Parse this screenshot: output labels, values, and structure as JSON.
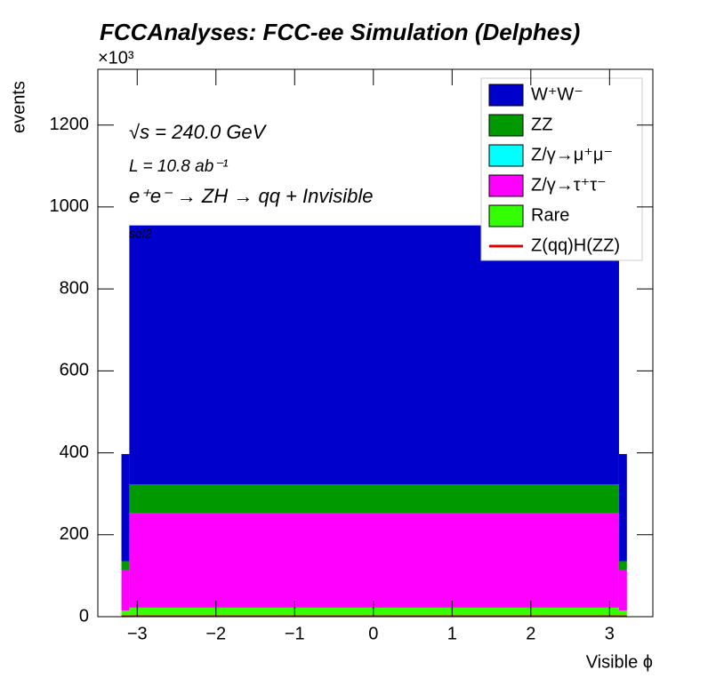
{
  "chart_data": {
    "type": "histogram",
    "stacked": true,
    "title": "FCCAnalyses: FCC-ee Simulation (Delphes)",
    "y_multiplier": "×10³",
    "ylabel": "events",
    "xlabel": "Visible ϕ",
    "annotations": [
      "√s = 240.0 GeV",
      "L = 10.8 ab⁻¹",
      "e⁺e⁻ → ZH → qq + Invisible",
      "sel2"
    ],
    "bins": [
      -3.2,
      -3.1,
      3.12,
      3.22
    ],
    "series": [
      {
        "name": "W⁺W⁻",
        "color": "#0000cc",
        "values": [
          262,
          632,
          262
        ]
      },
      {
        "name": "ZZ",
        "color": "#009900",
        "values": [
          22,
          71,
          22
        ]
      },
      {
        "name": "Z/γ→μ⁺μ⁻",
        "color": "#00ffff",
        "values": [
          0,
          0,
          0
        ]
      },
      {
        "name": "Z/γ→τ⁺τ⁻",
        "color": "#ff00ff",
        "values": [
          98,
          230,
          98
        ]
      },
      {
        "name": "Rare",
        "color": "#33ff00",
        "values": [
          15,
          22,
          15
        ]
      },
      {
        "name": "Z(qq)H(ZZ)",
        "color": "#dd0000",
        "style": "line",
        "values": [
          1,
          1,
          1
        ]
      }
    ],
    "xlim": [
      -3.5,
      3.55
    ],
    "ylim": [
      0,
      1336
    ],
    "xticks": [
      {
        "value": -3,
        "label": "−3"
      },
      {
        "value": -2,
        "label": "−2"
      },
      {
        "value": -1,
        "label": "−1"
      },
      0,
      1,
      2,
      3
    ],
    "yticks": [
      0,
      200,
      400,
      600,
      800,
      1000,
      1200
    ]
  }
}
